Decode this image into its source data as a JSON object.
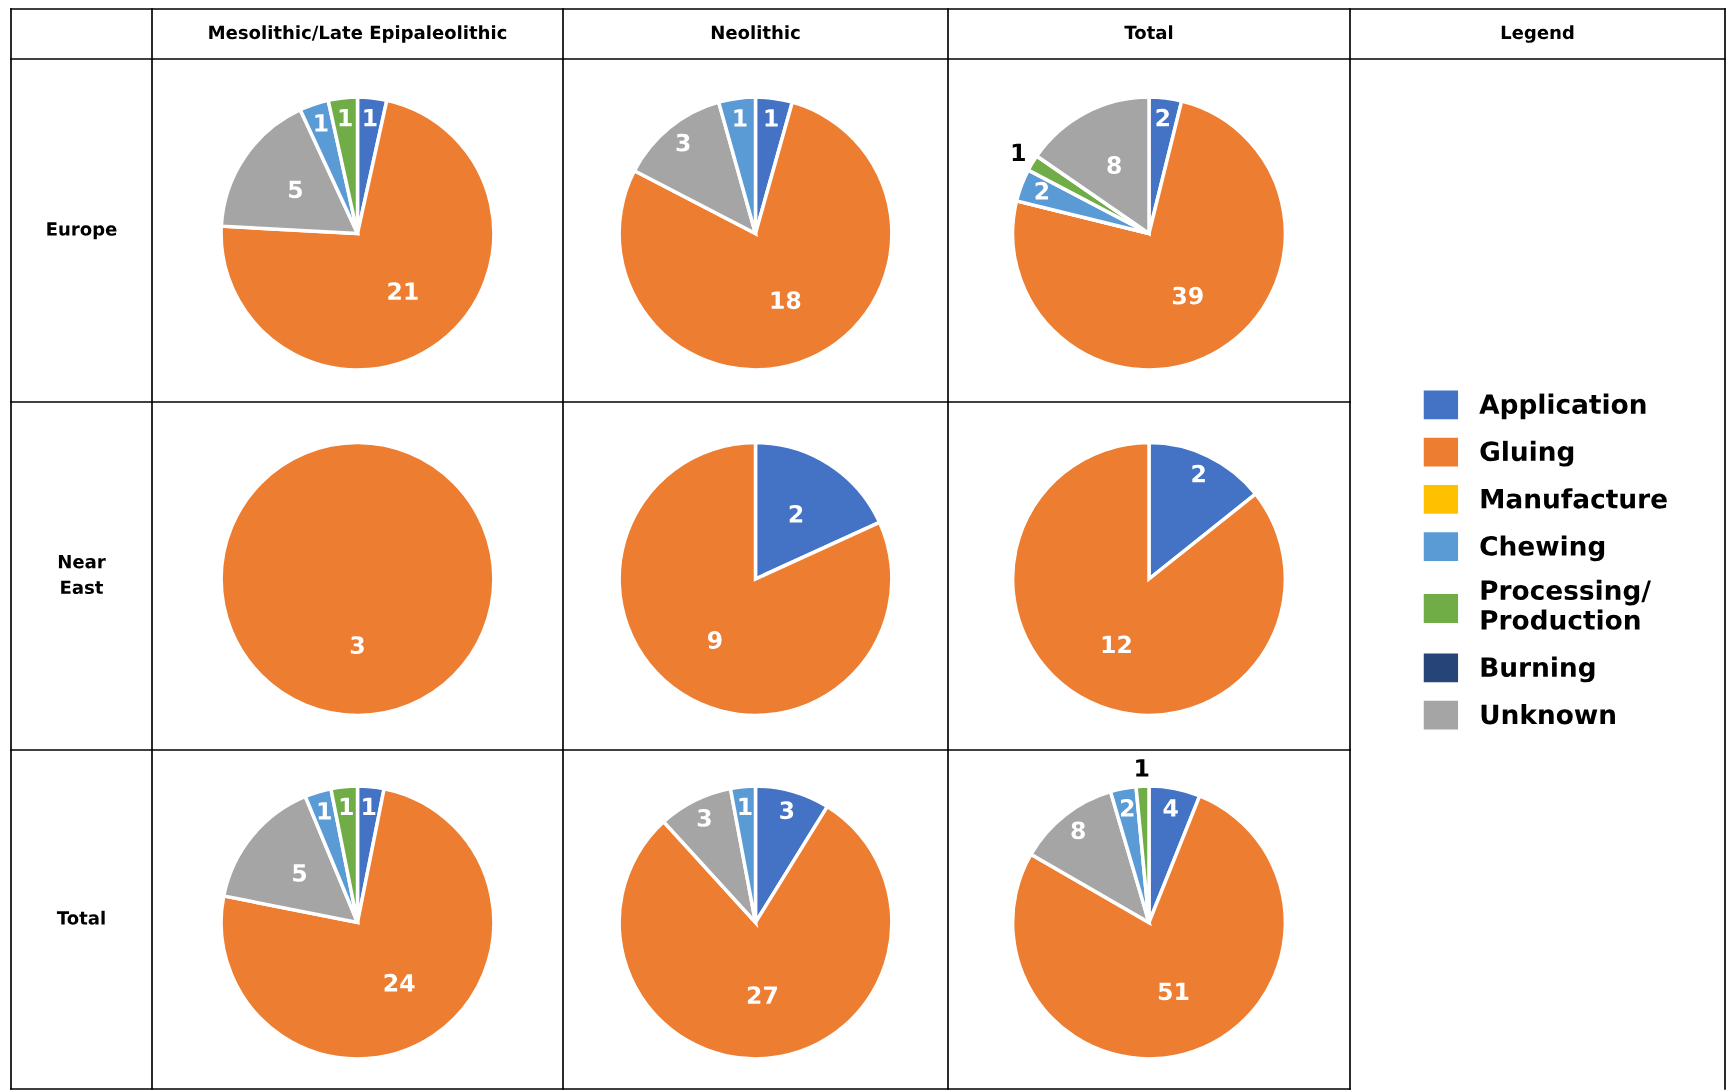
{
  "chart_data": [
    {
      "type": "other",
      "annotations": [
        "Mesolithic/Late Epipaleolithic",
        "Neolithic",
        "Total",
        "Legend",
        "Europe",
        "Near East",
        "Total"
      ]
    },
    {
      "type": "pie",
      "categories": [
        null,
        null,
        null,
        null,
        null
      ],
      "values": [
        1,
        21,
        5,
        1,
        1
      ],
      "colors": [
        "#4472c4",
        "#ed7d31",
        "#a5a5a5",
        "#5b9bd5",
        "#70ad47"
      ],
      "data_labels": true
    },
    {
      "type": "pie",
      "categories": [
        null,
        null,
        null,
        null
      ],
      "values": [
        1,
        18,
        3,
        1
      ],
      "colors": [
        "#4472c4",
        "#ed7d31",
        "#a5a5a5",
        "#5b9bd5"
      ],
      "data_labels": true
    },
    {
      "type": "pie",
      "categories": [
        "Application",
        "Gluing",
        "Manufacture",
        "Chewing",
        "Processing/\nProduction",
        "Burning",
        "Unknown"
      ],
      "values": [
        2,
        39,
        0,
        2,
        1,
        0,
        8
      ],
      "colors": [
        "#4472c4",
        "#ed7d31",
        "#ffc000",
        "#5b9bd5",
        "#70ad47",
        "#264478",
        "#a5a5a5"
      ],
      "data_labels": true,
      "legend": "right"
    },
    {
      "type": "pie",
      "categories": [
        null
      ],
      "values": [
        3
      ],
      "colors": [
        "#ed7d31"
      ],
      "data_labels": true
    },
    {
      "type": "pie",
      "categories": [
        null,
        null
      ],
      "values": [
        2,
        9
      ],
      "colors": [
        "#4472c4",
        "#ed7d31"
      ],
      "data_labels": true
    },
    {
      "type": "pie",
      "categories": [
        null,
        null
      ],
      "values": [
        2,
        12
      ],
      "colors": [
        "#4472c4",
        "#ed7d31"
      ],
      "data_labels": true
    },
    {
      "type": "pie",
      "categories": [
        null,
        null,
        null,
        null,
        null
      ],
      "values": [
        1,
        24,
        5,
        1,
        1
      ],
      "colors": [
        "#4472c4",
        "#ed7d31",
        "#a5a5a5",
        "#5b9bd5",
        "#70ad47"
      ],
      "data_labels": true
    },
    {
      "type": "pie",
      "categories": [
        null,
        null,
        null,
        null
      ],
      "values": [
        3,
        27,
        3,
        1
      ],
      "colors": [
        "#4472c4",
        "#ed7d31",
        "#a5a5a5",
        "#5b9bd5"
      ],
      "data_labels": true
    },
    {
      "type": "pie",
      "categories": [
        null,
        null,
        null,
        null,
        null
      ],
      "values": [
        4,
        51,
        8,
        2,
        1
      ],
      "colors": [
        "#4472c4",
        "#ed7d31",
        "#a5a5a5",
        "#5b9bd5",
        "#70ad47"
      ],
      "data_labels": true
    }
  ]
}
